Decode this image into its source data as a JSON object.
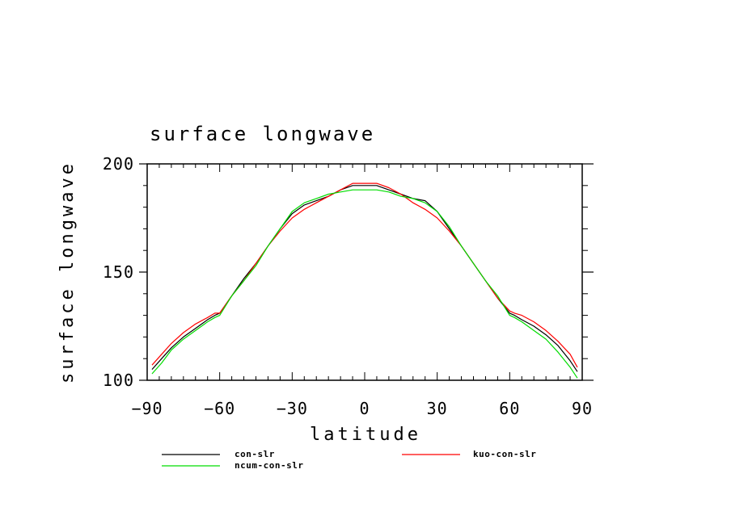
{
  "chart_data": {
    "type": "line",
    "title": "surface longwave",
    "xlabel": "latitude",
    "ylabel": "surface longwave",
    "xlim": [
      -90,
      90
    ],
    "ylim": [
      100,
      200
    ],
    "xticks": [
      -90,
      -60,
      -30,
      0,
      30,
      60,
      90
    ],
    "xtick_labels": [
      "−90",
      "−60",
      "−30",
      "0",
      "30",
      "60",
      "90"
    ],
    "yticks": [
      100,
      150,
      200
    ],
    "ytick_labels": [
      "100",
      "150",
      "200"
    ],
    "grid": false,
    "legend_position": "bottom",
    "series": [
      {
        "name": "con-slr",
        "color": "#000000",
        "x": [
          -88,
          -84,
          -80,
          -75,
          -70,
          -65,
          -62,
          -60,
          -55,
          -50,
          -45,
          -40,
          -35,
          -30,
          -25,
          -20,
          -15,
          -10,
          -5,
          0,
          5,
          10,
          15,
          20,
          25,
          30,
          35,
          40,
          45,
          50,
          55,
          60,
          62,
          65,
          70,
          75,
          80,
          85,
          88
        ],
        "y": [
          105,
          110,
          115,
          120,
          124,
          128,
          130,
          131,
          139,
          147,
          154,
          162,
          170,
          177,
          181,
          183,
          185,
          188,
          190,
          190,
          190,
          188,
          186,
          184,
          183,
          178,
          170,
          162,
          154,
          146,
          138,
          131,
          130,
          128,
          125,
          121,
          116,
          109,
          104
        ]
      },
      {
        "name": "kuo-con-slr",
        "color": "#ff0000",
        "x": [
          -88,
          -84,
          -80,
          -75,
          -70,
          -65,
          -62,
          -60,
          -55,
          -50,
          -45,
          -40,
          -35,
          -30,
          -25,
          -20,
          -15,
          -10,
          -5,
          0,
          5,
          10,
          15,
          20,
          25,
          30,
          35,
          40,
          45,
          50,
          55,
          60,
          62,
          65,
          70,
          75,
          80,
          85,
          88
        ],
        "y": [
          107,
          112,
          117,
          122,
          126,
          129,
          131,
          131,
          139,
          146,
          154,
          162,
          169,
          175,
          179,
          182,
          185,
          188,
          191,
          191,
          191,
          189,
          186,
          182,
          179,
          175,
          169,
          162,
          154,
          146,
          138,
          132,
          131,
          130,
          127,
          123,
          118,
          112,
          106
        ]
      },
      {
        "name": "ncum-con-slr",
        "color": "#00dd00",
        "x": [
          -88,
          -84,
          -80,
          -75,
          -70,
          -65,
          -62,
          -60,
          -55,
          -50,
          -45,
          -40,
          -35,
          -30,
          -25,
          -20,
          -15,
          -10,
          -5,
          0,
          5,
          10,
          15,
          20,
          25,
          30,
          35,
          40,
          45,
          50,
          55,
          60,
          62,
          65,
          70,
          75,
          80,
          85,
          88
        ],
        "y": [
          103,
          108,
          114,
          119,
          123,
          127,
          129,
          130,
          139,
          146,
          153,
          162,
          170,
          178,
          182,
          184,
          186,
          187,
          188,
          188,
          188,
          187,
          185,
          184,
          182,
          178,
          171,
          162,
          154,
          146,
          139,
          130,
          129,
          127,
          123,
          119,
          113,
          106,
          101
        ]
      }
    ]
  }
}
